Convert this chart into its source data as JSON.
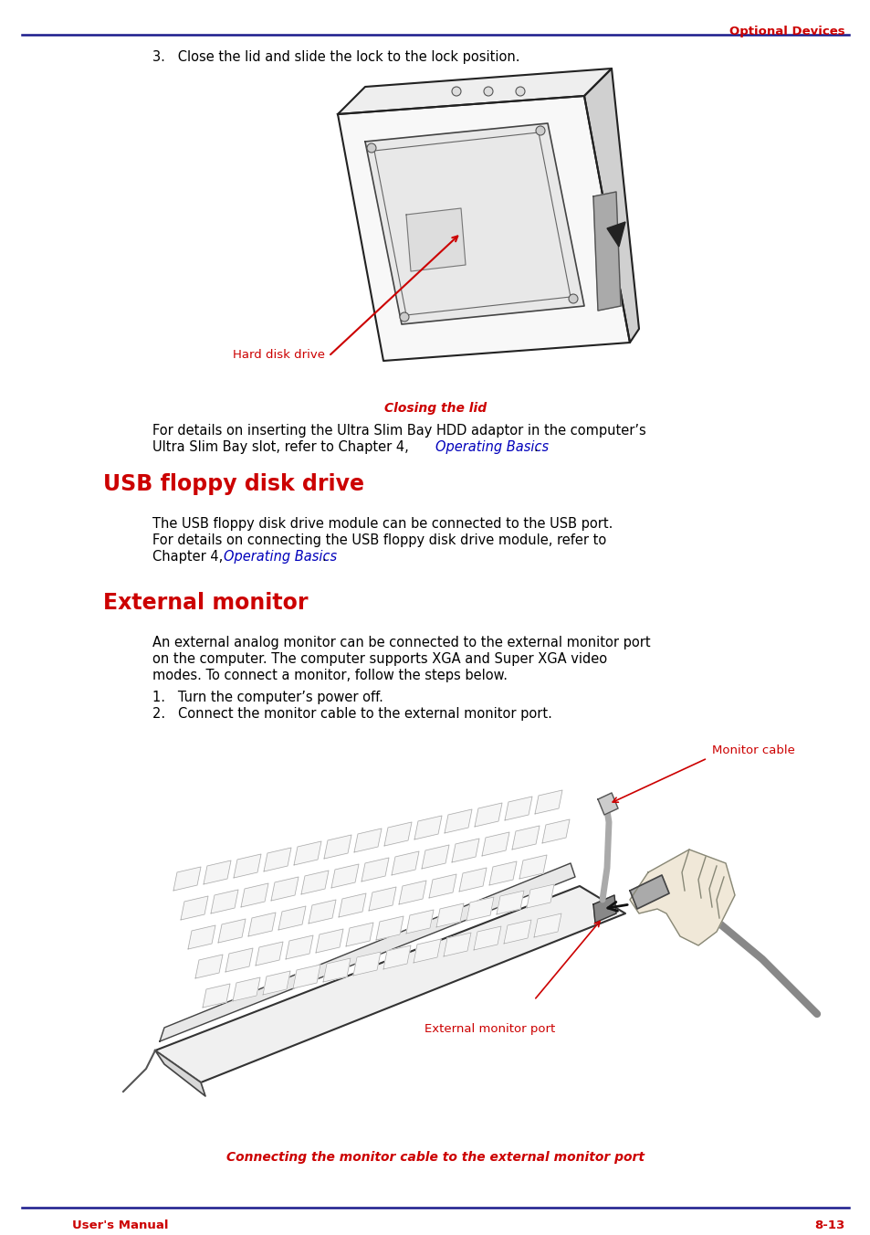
{
  "page_bg": "#ffffff",
  "header_text": "Optional Devices",
  "header_color": "#cc0000",
  "header_line_color": "#1a1a8c",
  "footer_left": "User's Manual",
  "footer_right": "8-13",
  "footer_color": "#cc0000",
  "footer_line_color": "#1a1a8c",
  "section1_heading": "USB floppy disk drive",
  "section1_heading_color": "#cc0000",
  "section2_heading": "External monitor",
  "section2_heading_color": "#cc0000",
  "step3_text": "3.   Close the lid and slide the lock to the lock position.",
  "caption1": "Closing the lid",
  "caption1_color": "#cc0000",
  "label_harddisk": "Hard disk drive",
  "label_harddisk_color": "#cc0000",
  "link_color": "#0000bb",
  "step1_text": "1.   Turn the computer’s power off.",
  "step2_text": "2.   Connect the monitor cable to the external monitor port.",
  "caption2": "Connecting the monitor cable to the external monitor port",
  "caption2_color": "#cc0000",
  "label_monitor_cable": "Monitor cable",
  "label_monitor_cable_color": "#cc0000",
  "label_ext_monitor_port": "External monitor port",
  "label_ext_monitor_port_color": "#cc0000",
  "lm": 0.118,
  "im": 0.175
}
